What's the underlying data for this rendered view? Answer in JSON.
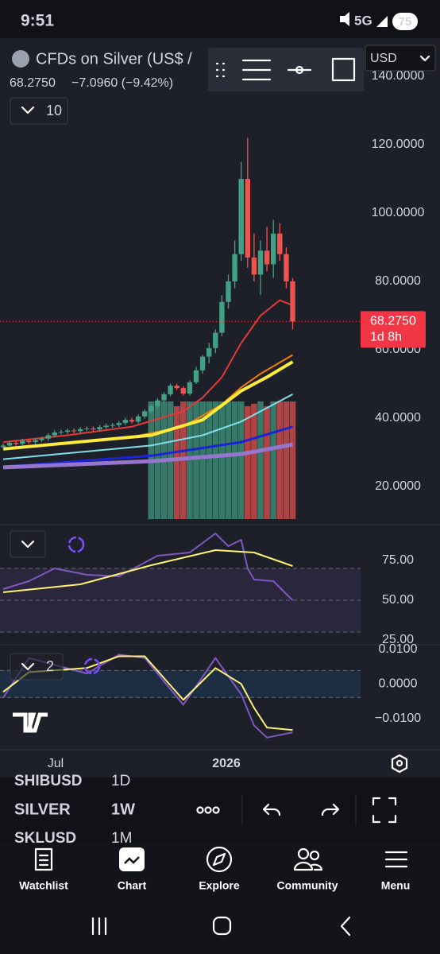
{
  "status_bar": {
    "time": "9:51",
    "network": "5G",
    "battery": "75"
  },
  "header": {
    "symbol": "CFDs on Silver (US$ /",
    "price": "68.2750",
    "change": "−7.0960 (−9.42%)",
    "indicator_count": "10",
    "currency": "USD"
  },
  "chart_data": [
    {
      "type": "candlestick",
      "ylim": [
        10,
        150
      ],
      "yticks": [
        {
          "value": 20,
          "label": "20.0000"
        },
        {
          "value": 40,
          "label": "40.0000"
        },
        {
          "value": 60,
          "label": "60.0000"
        },
        {
          "value": 80,
          "label": "80.0000"
        },
        {
          "value": 100,
          "label": "100.0000"
        },
        {
          "value": 120,
          "label": "120.0000"
        },
        {
          "value": 140,
          "label": "140.0000"
        }
      ],
      "up_color": "#42a085",
      "down_color": "#ef5350",
      "open": [
        31.5,
        32.0,
        32.8,
        32.5,
        33.4,
        33.0,
        33.6,
        34.0,
        35.0,
        35.8,
        36.0,
        36.4,
        36.2,
        36.8,
        37.0,
        36.7,
        37.4,
        37.8,
        38.0,
        38.6,
        39.5,
        39.0,
        40.5,
        42.0,
        43.5,
        45.2,
        47.0,
        49.5,
        48.8,
        47.2,
        50.5,
        54,
        58,
        60.5,
        65,
        74,
        80,
        88,
        110,
        87,
        82,
        89,
        85,
        94,
        88,
        80
      ],
      "high": [
        32.6,
        33.4,
        33.4,
        34.0,
        34.0,
        34.2,
        34.6,
        35.6,
        36.4,
        36.6,
        37.0,
        37.0,
        37.4,
        37.6,
        37.6,
        38.0,
        38.4,
        38.6,
        39.2,
        40.1,
        40.1,
        41.1,
        42.6,
        44.1,
        45.8,
        47.6,
        50.1,
        50.1,
        49.4,
        51.1,
        55,
        58.5,
        62,
        66,
        76,
        82,
        92,
        115,
        122,
        94,
        92,
        96,
        98,
        97,
        90,
        81
      ],
      "low": [
        30.9,
        31.4,
        31.9,
        31.9,
        32.4,
        32.4,
        33.0,
        33.4,
        34.4,
        35.2,
        35.4,
        35.6,
        35.6,
        36.2,
        36.1,
        36.1,
        36.8,
        37.2,
        37.4,
        38.0,
        38.4,
        38.4,
        39.9,
        41.4,
        42.9,
        44.6,
        46.4,
        48.2,
        46.6,
        46.6,
        50,
        53,
        56,
        59,
        64,
        72,
        78,
        86,
        84,
        80,
        76,
        83,
        81,
        86,
        78,
        66
      ],
      "close": [
        32.0,
        32.8,
        32.5,
        33.4,
        33.0,
        33.6,
        34.0,
        35.0,
        35.8,
        36.0,
        36.4,
        36.2,
        36.8,
        37.0,
        36.7,
        37.4,
        37.8,
        38.0,
        38.6,
        39.5,
        39.0,
        40.5,
        42.0,
        43.5,
        45.2,
        47.0,
        49.5,
        48.8,
        47.2,
        50.5,
        54,
        58,
        60.5,
        65,
        74,
        80,
        88,
        110,
        87,
        82,
        89,
        85,
        94,
        88,
        80,
        68.275
      ],
      "volume": [
        null,
        null,
        null,
        null,
        null,
        null,
        null,
        null,
        null,
        null,
        null,
        null,
        null,
        null,
        null,
        null,
        null,
        null,
        null,
        null,
        null,
        null,
        null,
        100,
        100,
        100,
        100,
        96,
        100,
        100,
        100,
        100,
        100,
        100,
        100,
        100,
        100,
        100,
        96,
        98,
        100,
        96,
        100,
        100,
        100,
        100
      ],
      "series": [
        {
          "color": "#e53935",
          "x": [
            0,
            10,
            20,
            28,
            31,
            34,
            37,
            40,
            43,
            45
          ],
          "values": [
            33,
            35,
            37.5,
            42,
            46,
            52,
            62,
            70,
            74.5,
            73
          ]
        },
        {
          "color": "#f57c00",
          "x": [
            0,
            20,
            28,
            34,
            37,
            40,
            45
          ],
          "values": [
            31,
            34.5,
            37.5,
            44,
            49,
            53,
            58.5
          ]
        },
        {
          "color": "#ffeb3b",
          "line_width": 4,
          "x": [
            0,
            23,
            31,
            37,
            41,
            45
          ],
          "values": [
            31,
            35,
            39.5,
            48,
            52,
            56.5
          ]
        },
        {
          "color": "#80deea",
          "x": [
            0,
            23,
            31,
            37,
            41,
            45
          ],
          "values": [
            28,
            32,
            35,
            39,
            43,
            47
          ]
        },
        {
          "color": "#1a23d8",
          "line_width": 3,
          "x": [
            0,
            23,
            37,
            45
          ],
          "values": [
            25.8,
            29,
            33,
            37.5
          ]
        },
        {
          "color": "#9575cd",
          "line_width": 5,
          "x": [
            0,
            23,
            37,
            45
          ],
          "values": [
            25.6,
            27.4,
            29.5,
            32.3
          ]
        }
      ],
      "price_label": {
        "value": 68.275,
        "label": "68.2750"
      },
      "countdown": "1d 8h"
    },
    {
      "type": "line",
      "ylim": [
        22.5,
        95
      ],
      "yticks": [
        {
          "value": 25,
          "label": "25.00"
        },
        {
          "value": 50,
          "label": "50.00"
        },
        {
          "value": 75,
          "label": "75.00"
        }
      ],
      "bands": [
        30,
        50,
        70
      ],
      "band_color": "rgba(126,87,194,0.13)",
      "series": [
        {
          "color": "#7e57c2",
          "x": [
            0,
            4,
            8,
            13,
            18,
            24,
            29,
            33,
            35,
            37,
            38,
            39,
            42,
            45
          ],
          "values": [
            57,
            62,
            70,
            66,
            65,
            78,
            80,
            92,
            84,
            88,
            70,
            63,
            62,
            50
          ]
        },
        {
          "color": "#fff176",
          "x": [
            0,
            12,
            23,
            33,
            39,
            45
          ],
          "values": [
            55,
            60,
            72,
            81.5,
            80,
            71.5
          ]
        }
      ]
    },
    {
      "type": "line",
      "ylim": [
        -0.0183,
        0.0111
      ],
      "yticks": [
        {
          "value": -0.01,
          "label": "−0.0100"
        },
        {
          "value": 0,
          "label": "0.0000"
        },
        {
          "value": 0.01,
          "label": "0.0100"
        }
      ],
      "indicator_count": "2",
      "bands": [
        -0.0039,
        0.0039
      ],
      "band_color": "rgba(33,150,243,0.13)",
      "series": [
        {
          "color": "#7e57c2",
          "x": [
            0,
            4,
            13,
            18,
            22,
            28,
            33,
            37,
            39,
            41,
            45
          ],
          "values": [
            -0.004,
            0.0075,
            0.003,
            0.0085,
            0.0075,
            -0.006,
            0.0075,
            -0.003,
            -0.012,
            -0.0155,
            -0.014
          ]
        },
        {
          "color": "#fff176",
          "x": [
            0,
            4,
            13,
            18,
            22,
            28,
            33,
            37,
            39,
            41,
            45
          ],
          "values": [
            -0.0023,
            0.0034,
            0.0046,
            0.008,
            0.008,
            -0.0046,
            0.0046,
            0,
            -0.0069,
            -0.0126,
            -0.0133
          ]
        }
      ]
    }
  ],
  "x_axis_labels": [
    "Jul",
    "2026"
  ],
  "symbol_list": [
    {
      "symbol": "SHIBUSD",
      "interval": "1D"
    },
    {
      "symbol": "SILVER",
      "interval": "1W"
    },
    {
      "symbol": "SKLUSD",
      "interval": "1M"
    }
  ],
  "nav": [
    "Watchlist",
    "Chart",
    "Explore",
    "Community",
    "Menu"
  ]
}
